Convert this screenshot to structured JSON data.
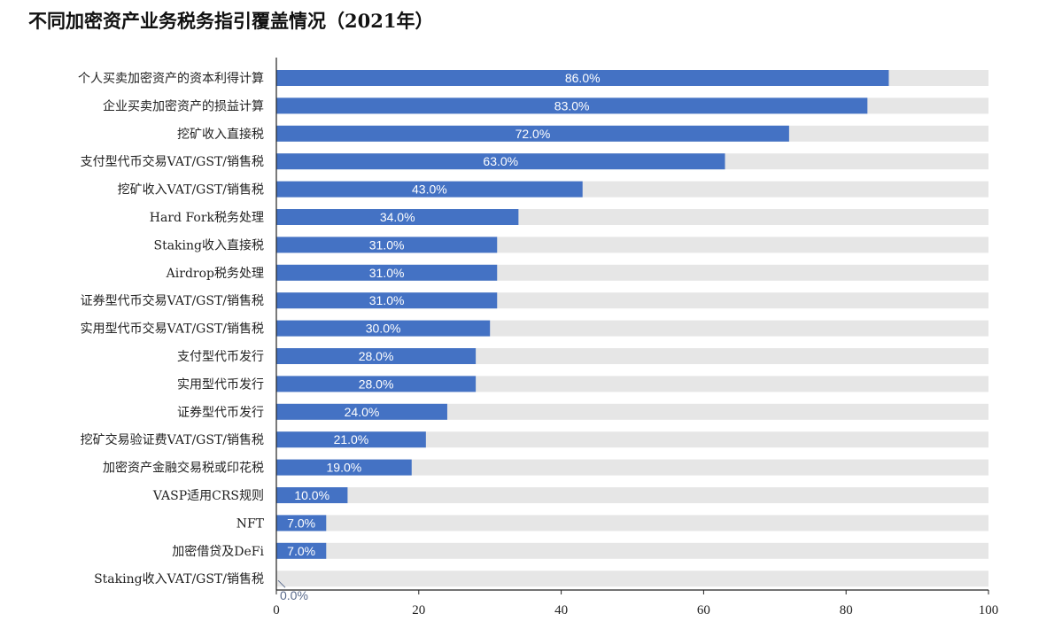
{
  "chart_data": {
    "type": "bar",
    "orientation": "horizontal",
    "title": "不同加密资产业务税务指引覆盖情况（2021年）",
    "categories": [
      "个人买卖加密资产的资本利得计算",
      "企业买卖加密资产的损益计算",
      "挖矿收入直接税",
      "支付型代币交易VAT/GST/销售税",
      "挖矿收入VAT/GST/销售税",
      "Hard Fork税务处理",
      "Staking收入直接税",
      "Airdrop税务处理",
      "证券型代币交易VAT/GST/销售税",
      "实用型代币交易VAT/GST/销售税",
      "支付型代币发行",
      "实用型代币发行",
      "证券型代币发行",
      "挖矿交易验证费VAT/GST/销售税",
      "加密资产金融交易税或印花税",
      "VASP适用CRS规则",
      "NFT",
      "加密借贷及DeFi",
      "Staking收入VAT/GST/销售税"
    ],
    "values": [
      86.0,
      83.0,
      72.0,
      63.0,
      43.0,
      34.0,
      31.0,
      31.0,
      31.0,
      30.0,
      28.0,
      28.0,
      24.0,
      21.0,
      19.0,
      10.0,
      7.0,
      7.0,
      0.0
    ],
    "data_labels": [
      "86.0%",
      "83.0%",
      "72.0%",
      "63.0%",
      "43.0%",
      "34.0%",
      "31.0%",
      "31.0%",
      "31.0%",
      "30.0%",
      "28.0%",
      "28.0%",
      "24.0%",
      "21.0%",
      "19.0%",
      "10.0%",
      "7.0%",
      "7.0%",
      "0.0%"
    ],
    "xlim": [
      0,
      100
    ],
    "xticks": [
      0,
      20,
      40,
      60,
      80,
      100
    ],
    "xlabel": "",
    "ylabel": "",
    "grid": false,
    "background_track": true,
    "colors": {
      "bar": "#4472c4",
      "track": "#e6e6e6",
      "axis": "#222222"
    }
  }
}
